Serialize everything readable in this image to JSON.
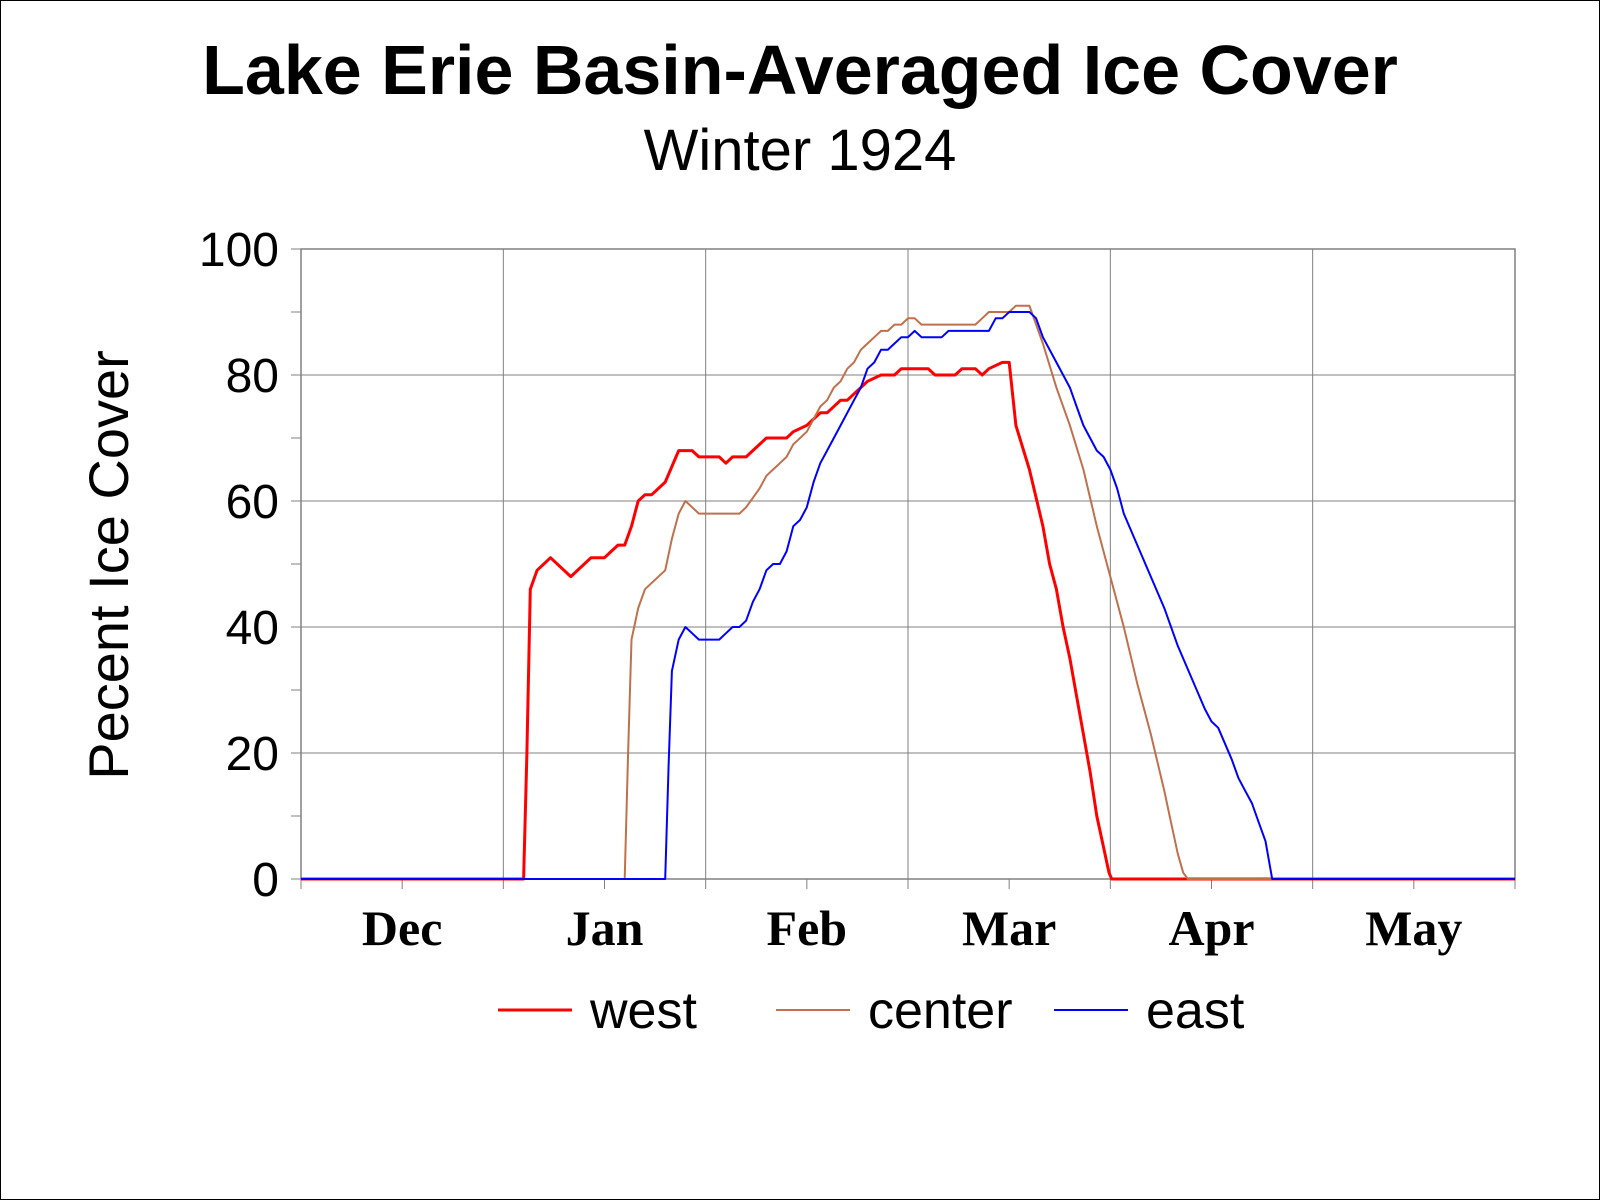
{
  "chart_data": {
    "type": "line",
    "title": "Lake Erie Basin-Averaged Ice Cover",
    "subtitle": "Winter 1924",
    "ylabel": "Pecent Ice Cover",
    "xlabel": "",
    "ylim": [
      0,
      100
    ],
    "yticks": [
      "0",
      "20",
      "40",
      "60",
      "80",
      "100"
    ],
    "x_unit": "days since Dec 1",
    "xlim": [
      0,
      180
    ],
    "month_labels": [
      "Dec",
      "Jan",
      "Feb",
      "Mar",
      "Apr",
      "May"
    ],
    "grid": true,
    "legend_position": "bottom",
    "series": [
      {
        "name": "west",
        "color": "#ff0000",
        "points": [
          [
            0,
            0
          ],
          [
            33,
            0
          ],
          [
            33.5,
            20
          ],
          [
            34,
            46
          ],
          [
            35,
            49
          ],
          [
            37,
            51
          ],
          [
            40,
            48
          ],
          [
            42,
            50
          ],
          [
            43,
            51
          ],
          [
            45,
            51
          ],
          [
            46,
            52
          ],
          [
            47,
            53
          ],
          [
            48,
            53
          ],
          [
            49,
            56
          ],
          [
            50,
            60
          ],
          [
            51,
            61
          ],
          [
            52,
            61
          ],
          [
            54,
            63
          ],
          [
            56,
            68
          ],
          [
            58,
            68
          ],
          [
            59,
            67
          ],
          [
            61,
            67
          ],
          [
            62,
            67
          ],
          [
            63,
            66
          ],
          [
            64,
            67
          ],
          [
            66,
            67
          ],
          [
            69,
            70
          ],
          [
            71,
            70
          ],
          [
            72,
            70
          ],
          [
            73,
            71
          ],
          [
            75,
            72
          ],
          [
            77,
            74
          ],
          [
            78,
            74
          ],
          [
            80,
            76
          ],
          [
            81,
            76
          ],
          [
            84,
            79
          ],
          [
            86,
            80
          ],
          [
            88,
            80
          ],
          [
            89,
            81
          ],
          [
            93,
            81
          ],
          [
            94,
            80
          ],
          [
            97,
            80
          ],
          [
            98,
            81
          ],
          [
            100,
            81
          ],
          [
            101,
            80
          ],
          [
            102,
            81
          ],
          [
            104,
            82
          ],
          [
            105,
            82
          ],
          [
            106,
            72
          ],
          [
            108,
            65
          ],
          [
            110,
            56
          ],
          [
            111,
            50
          ],
          [
            112,
            46
          ],
          [
            113,
            40
          ],
          [
            114,
            35
          ],
          [
            115,
            29
          ],
          [
            116,
            23
          ],
          [
            117,
            17
          ],
          [
            118,
            10
          ],
          [
            119,
            5
          ],
          [
            119.8,
            1
          ],
          [
            120.2,
            0
          ],
          [
            180,
            0
          ]
        ]
      },
      {
        "name": "center",
        "color": "#c0704b",
        "points": [
          [
            0,
            0
          ],
          [
            48,
            0
          ],
          [
            48.5,
            20
          ],
          [
            49,
            38
          ],
          [
            50,
            43
          ],
          [
            51,
            46
          ],
          [
            54,
            49
          ],
          [
            55,
            54
          ],
          [
            56,
            58
          ],
          [
            57,
            60
          ],
          [
            58,
            59
          ],
          [
            59,
            58
          ],
          [
            65,
            58
          ],
          [
            66,
            59
          ],
          [
            68,
            62
          ],
          [
            69,
            64
          ],
          [
            70,
            65
          ],
          [
            71,
            66
          ],
          [
            72,
            67
          ],
          [
            73,
            69
          ],
          [
            74,
            70
          ],
          [
            75,
            71
          ],
          [
            76,
            73
          ],
          [
            77,
            75
          ],
          [
            78,
            76
          ],
          [
            79,
            78
          ],
          [
            80,
            79
          ],
          [
            81,
            81
          ],
          [
            82,
            82
          ],
          [
            83,
            84
          ],
          [
            84,
            85
          ],
          [
            85,
            86
          ],
          [
            86,
            87
          ],
          [
            87,
            87
          ],
          [
            88,
            88
          ],
          [
            89,
            88
          ],
          [
            90,
            89
          ],
          [
            91,
            89
          ],
          [
            92,
            88
          ],
          [
            100,
            88
          ],
          [
            101,
            89
          ],
          [
            102,
            90
          ],
          [
            105,
            90
          ],
          [
            106,
            91
          ],
          [
            108,
            91
          ],
          [
            110,
            85
          ],
          [
            112,
            78
          ],
          [
            114,
            72
          ],
          [
            116,
            65
          ],
          [
            118,
            56
          ],
          [
            120,
            48
          ],
          [
            122,
            40
          ],
          [
            124,
            31
          ],
          [
            126,
            23
          ],
          [
            128,
            14
          ],
          [
            129,
            9
          ],
          [
            130,
            4
          ],
          [
            130.8,
            1
          ],
          [
            131.5,
            0
          ],
          [
            180,
            0
          ]
        ]
      },
      {
        "name": "east",
        "color": "#0000ff",
        "points": [
          [
            0,
            0
          ],
          [
            54,
            0
          ],
          [
            54.5,
            18
          ],
          [
            55,
            33
          ],
          [
            56,
            38
          ],
          [
            57,
            40
          ],
          [
            58,
            39
          ],
          [
            59,
            38
          ],
          [
            62,
            38
          ],
          [
            63,
            39
          ],
          [
            64,
            40
          ],
          [
            65,
            40
          ],
          [
            66,
            41
          ],
          [
            67,
            44
          ],
          [
            68,
            46
          ],
          [
            69,
            49
          ],
          [
            70,
            50
          ],
          [
            71,
            50
          ],
          [
            72,
            52
          ],
          [
            73,
            56
          ],
          [
            74,
            57
          ],
          [
            75,
            59
          ],
          [
            76,
            63
          ],
          [
            77,
            66
          ],
          [
            78,
            68
          ],
          [
            80,
            72
          ],
          [
            82,
            76
          ],
          [
            83,
            78
          ],
          [
            84,
            81
          ],
          [
            85,
            82
          ],
          [
            86,
            84
          ],
          [
            87,
            84
          ],
          [
            88,
            85
          ],
          [
            89,
            86
          ],
          [
            90,
            86
          ],
          [
            91,
            87
          ],
          [
            92,
            86
          ],
          [
            95,
            86
          ],
          [
            96,
            87
          ],
          [
            102,
            87
          ],
          [
            103,
            89
          ],
          [
            104,
            89
          ],
          [
            105,
            90
          ],
          [
            108,
            90
          ],
          [
            109,
            89
          ],
          [
            110,
            86
          ],
          [
            112,
            82
          ],
          [
            114,
            78
          ],
          [
            115,
            75
          ],
          [
            116,
            72
          ],
          [
            117,
            70
          ],
          [
            118,
            68
          ],
          [
            119,
            67
          ],
          [
            120,
            65
          ],
          [
            121,
            62
          ],
          [
            122,
            58
          ],
          [
            124,
            53
          ],
          [
            126,
            48
          ],
          [
            128,
            43
          ],
          [
            130,
            37
          ],
          [
            132,
            32
          ],
          [
            134,
            27
          ],
          [
            135,
            25
          ],
          [
            136,
            24
          ],
          [
            138,
            19
          ],
          [
            139,
            16
          ],
          [
            140,
            14
          ],
          [
            141,
            12
          ],
          [
            142,
            9
          ],
          [
            143,
            6
          ],
          [
            144,
            0
          ],
          [
            180,
            0
          ]
        ]
      }
    ]
  }
}
